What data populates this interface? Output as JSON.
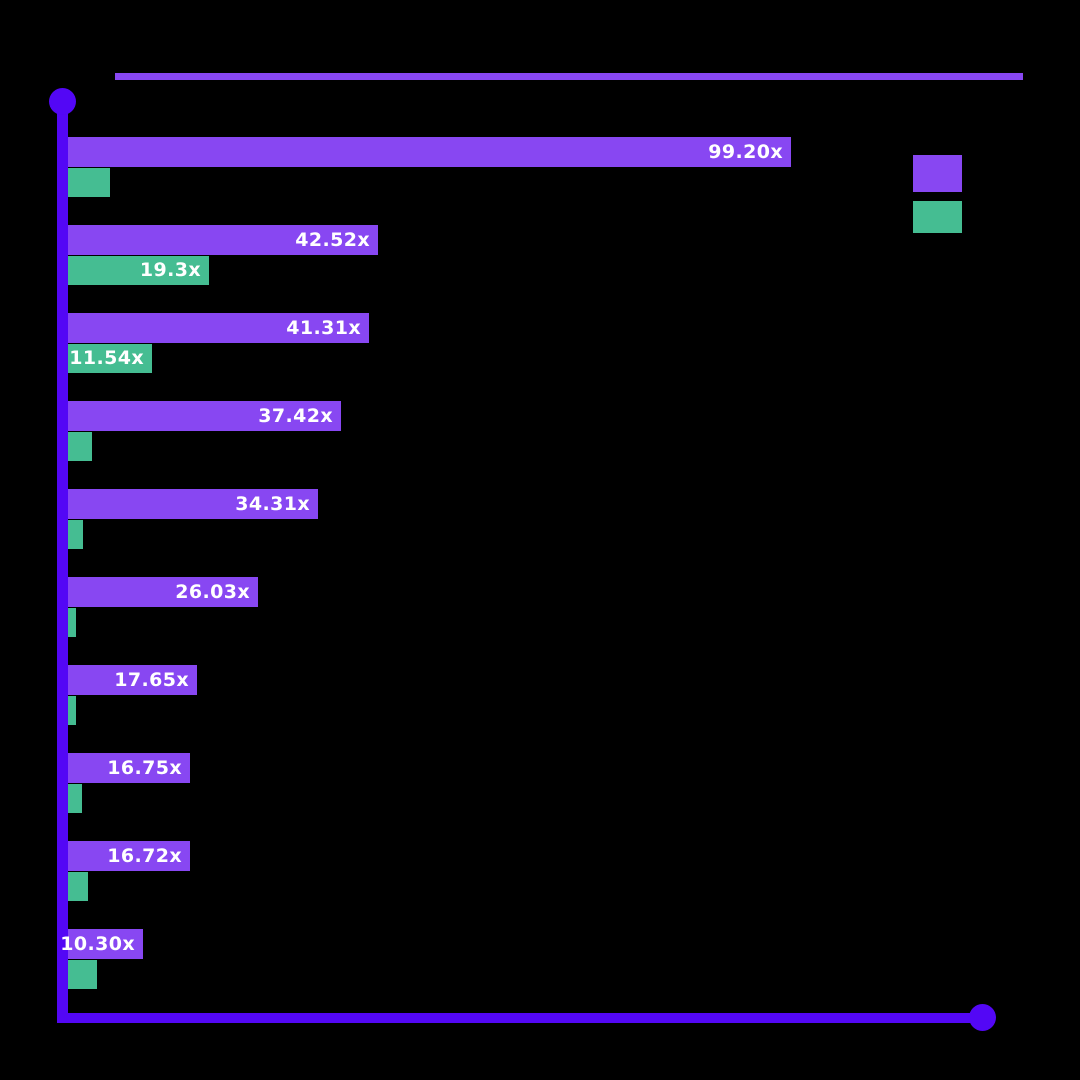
{
  "canvas": {
    "background": "#000000"
  },
  "decor": {
    "top_line_color": "#8847F2"
  },
  "axes": {
    "color": "#5307F5"
  },
  "legend": {
    "position": "top-right",
    "items": [
      {
        "name": "purple-series-swatch",
        "color": "#8847F2"
      },
      {
        "name": "green-series-swatch",
        "color": "#45BD92"
      }
    ]
  },
  "chart_data": {
    "type": "bar",
    "orientation": "horizontal",
    "title": "",
    "value_suffix": "x",
    "grid": false,
    "legend_position": "top-right",
    "xlim": [
      0,
      125
    ],
    "categories": [
      "",
      "",
      "",
      "",
      "",
      "",
      "",
      "",
      "",
      ""
    ],
    "series": [
      {
        "name": "series-purple",
        "color": "#8847F2",
        "values": [
          99.2,
          42.52,
          41.31,
          37.42,
          34.31,
          26.03,
          17.65,
          16.75,
          16.72,
          10.3
        ],
        "labels": [
          "99.20x",
          "42.52x",
          "41.31x",
          "37.42x",
          "34.31x",
          "26.03x",
          "17.65x",
          "16.75x",
          "16.72x",
          "10.30x"
        ]
      },
      {
        "name": "series-green",
        "color": "#45BD92",
        "values": [
          5.8,
          19.3,
          11.54,
          3.3,
          2.0,
          0.8,
          0.7,
          1.9,
          2.8,
          4.0
        ],
        "labels": [
          "",
          "19.3x",
          "11.54x",
          "",
          "",
          "",
          "",
          "",
          "",
          ""
        ],
        "estimated": [
          true,
          false,
          false,
          true,
          true,
          true,
          true,
          true,
          true,
          true
        ]
      }
    ]
  }
}
